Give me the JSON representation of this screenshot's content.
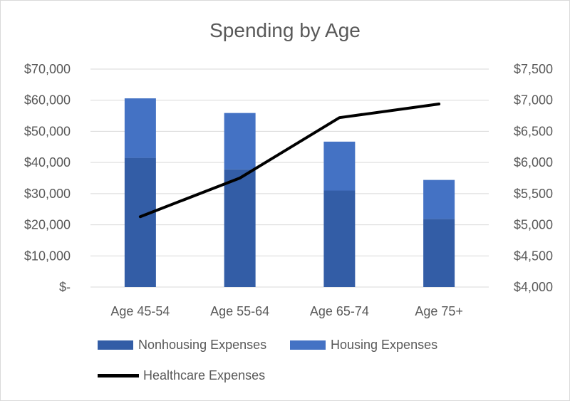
{
  "chart_data": {
    "type": "bar",
    "title": "Spending by Age",
    "categories": [
      "Age 45-54",
      "Age 55-64",
      "Age 65-74",
      "Age 75+"
    ],
    "stacked": true,
    "series": [
      {
        "name": "Nonhousing Expenses",
        "type": "bar",
        "axis": "left",
        "color": "#335da6",
        "values": [
          41500,
          37800,
          31000,
          21900
        ]
      },
      {
        "name": "Housing Expenses",
        "type": "bar",
        "axis": "left",
        "color": "#4472c4",
        "values": [
          19100,
          18100,
          15700,
          12500
        ]
      },
      {
        "name": "Healthcare Expenses",
        "type": "line",
        "axis": "right",
        "color": "#000000",
        "values": [
          5130,
          5750,
          6720,
          6940
        ]
      }
    ],
    "y_left": {
      "min": 0,
      "max": 70000,
      "step": 10000,
      "tick_labels": [
        "$-",
        "$10,000",
        "$20,000",
        "$30,000",
        "$40,000",
        "$50,000",
        "$60,000",
        "$70,000"
      ]
    },
    "y_right": {
      "min": 4000,
      "max": 7500,
      "step": 500,
      "tick_labels": [
        "$4,000",
        "$4,500",
        "$5,000",
        "$5,500",
        "$6,000",
        "$6,500",
        "$7,000",
        "$7,500"
      ]
    },
    "grid": true,
    "legend_position": "bottom"
  }
}
